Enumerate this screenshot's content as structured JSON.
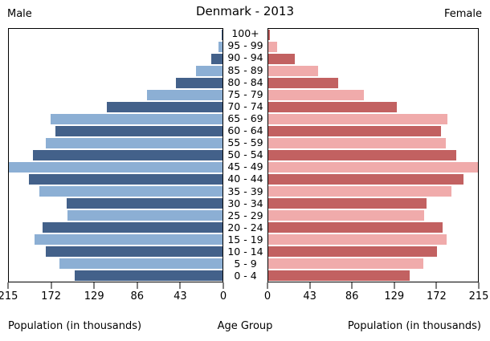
{
  "title": "Denmark - 2013",
  "headers": {
    "male": "Male",
    "female": "Female"
  },
  "axis": {
    "left_ticks": [
      "215",
      "172",
      "129",
      "86",
      "43",
      "0"
    ],
    "right_ticks": [
      "0",
      "43",
      "86",
      "129",
      "172",
      "215"
    ],
    "left_caption": "Population (in thousands)",
    "center_caption": "Age Group",
    "right_caption": "Population (in thousands)"
  },
  "colors": {
    "male_dark": "#43618a",
    "male_light": "#8cafd4",
    "female_dark": "#c26161",
    "female_light": "#f0abab"
  },
  "chart_data": {
    "type": "bar",
    "subtype": "population-pyramid",
    "title": "Denmark - 2013",
    "units": "thousands",
    "xlim": [
      0,
      215
    ],
    "x_tick_step": 43,
    "categories": [
      "100+",
      "95 - 99",
      "90 - 94",
      "85 - 89",
      "80 - 84",
      "75 - 79",
      "70 - 74",
      "65 - 69",
      "60 - 64",
      "55 - 59",
      "50 - 54",
      "45 - 49",
      "40 - 44",
      "35 - 39",
      "30 - 34",
      "25 - 29",
      "20 - 24",
      "15 - 19",
      "10 - 14",
      "5 - 9",
      "0 - 4"
    ],
    "series": [
      {
        "name": "Male",
        "values": [
          1,
          4,
          11,
          27,
          47,
          76,
          116,
          173,
          168,
          178,
          191,
          215,
          195,
          184,
          157,
          156,
          181,
          189,
          178,
          164,
          149
        ]
      },
      {
        "name": "Female",
        "values": [
          2,
          9,
          27,
          51,
          72,
          98,
          132,
          184,
          177,
          182,
          193,
          215,
          200,
          188,
          162,
          160,
          179,
          183,
          173,
          159,
          145
        ]
      }
    ],
    "legend": "none",
    "grid": false
  }
}
